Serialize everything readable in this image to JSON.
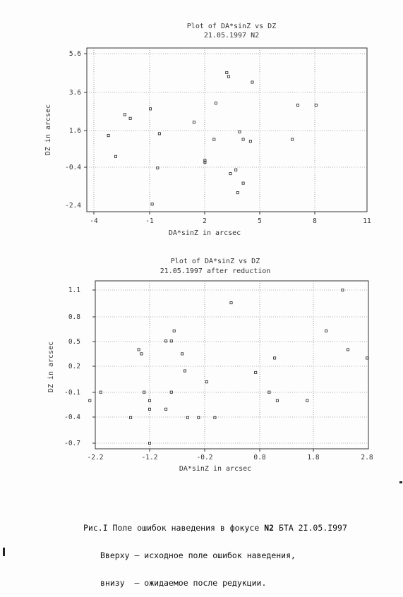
{
  "charts": [
    {
      "title": "Plot of DA*sinZ vs DZ",
      "subtitle": "21.05.1997 N2",
      "xlabel": "DA*sinZ in arcsec",
      "ylabel": "DZ in arcsec",
      "x_ticks": [
        "-4",
        "-1",
        "2",
        "5",
        "8",
        "11"
      ],
      "y_ticks": [
        "5.6",
        "3.6",
        "1.6",
        "-0.4",
        "-2.4"
      ]
    },
    {
      "title": "Plot of DA*sinZ vs DZ",
      "subtitle": "21.05.1997 after reduction",
      "xlabel": "DA*sinZ in arcsec",
      "ylabel": "DZ in arcsec",
      "x_ticks": [
        "-2.2",
        "-1.2",
        "-0.2",
        "0.8",
        "1.8",
        "2.8"
      ],
      "y_ticks": [
        "1.1",
        "0.8",
        "0.5",
        "0.2",
        "-0.1",
        "-0.4",
        "-0.7"
      ]
    }
  ],
  "chart_data": [
    {
      "type": "scatter",
      "title": "Plot of DA*sinZ vs DZ",
      "subtitle": "21.05.1997 N2",
      "xlabel": "DA*sinZ in arcsec",
      "ylabel": "DZ in arcsec",
      "xlim": [
        -4,
        11
      ],
      "ylim": [
        -2.4,
        5.6
      ],
      "x_ticks": [
        -4,
        -1,
        2,
        5,
        8,
        11
      ],
      "y_ticks": [
        5.6,
        3.6,
        1.6,
        -0.4,
        -2.4
      ],
      "grid": true,
      "points": [
        {
          "x": 3.3,
          "y": 4.6
        },
        {
          "x": 3.4,
          "y": 4.4
        },
        {
          "x": 4.7,
          "y": 4.1
        },
        {
          "x": 2.7,
          "y": 3.0
        },
        {
          "x": 7.2,
          "y": 2.9
        },
        {
          "x": 8.2,
          "y": 2.9
        },
        {
          "x": -0.9,
          "y": 2.7
        },
        {
          "x": -2.3,
          "y": 2.4
        },
        {
          "x": -2.0,
          "y": 2.2
        },
        {
          "x": 1.5,
          "y": 2.0
        },
        {
          "x": 4.0,
          "y": 1.5
        },
        {
          "x": -3.2,
          "y": 1.3
        },
        {
          "x": -0.4,
          "y": 1.4
        },
        {
          "x": 4.2,
          "y": 1.1
        },
        {
          "x": 4.6,
          "y": 1.0
        },
        {
          "x": 2.6,
          "y": 1.1
        },
        {
          "x": 6.9,
          "y": 1.1
        },
        {
          "x": 2.1,
          "y": 0.0
        },
        {
          "x": 2.1,
          "y": -0.1
        },
        {
          "x": -2.8,
          "y": 0.2
        },
        {
          "x": -0.5,
          "y": -0.4
        },
        {
          "x": 3.8,
          "y": -0.5
        },
        {
          "x": 3.5,
          "y": -0.7
        },
        {
          "x": 4.2,
          "y": -1.2
        },
        {
          "x": 3.9,
          "y": -1.7
        },
        {
          "x": -0.8,
          "y": -2.3
        }
      ]
    },
    {
      "type": "scatter",
      "title": "Plot of DA*sinZ vs DZ",
      "subtitle": "21.05.1997 after reduction",
      "xlabel": "DA*sinZ in arcsec",
      "ylabel": "DZ in arcsec",
      "xlim": [
        -2.2,
        2.8
      ],
      "ylim": [
        -0.7,
        1.1
      ],
      "x_ticks": [
        -2.2,
        -1.2,
        -0.2,
        0.8,
        1.8,
        2.8
      ],
      "y_ticks": [
        1.1,
        0.8,
        0.5,
        0.2,
        -0.1,
        -0.4,
        -0.7
      ],
      "grid": true,
      "points": [
        {
          "x": 2.35,
          "y": 1.1
        },
        {
          "x": 0.3,
          "y": 0.95
        },
        {
          "x": 2.05,
          "y": 0.62
        },
        {
          "x": -0.75,
          "y": 0.62
        },
        {
          "x": -0.9,
          "y": 0.5
        },
        {
          "x": -0.8,
          "y": 0.5
        },
        {
          "x": 2.45,
          "y": 0.4
        },
        {
          "x": -1.4,
          "y": 0.4
        },
        {
          "x": -1.35,
          "y": 0.35
        },
        {
          "x": -0.6,
          "y": 0.35
        },
        {
          "x": 1.1,
          "y": 0.3
        },
        {
          "x": 2.8,
          "y": 0.3
        },
        {
          "x": -0.55,
          "y": 0.15
        },
        {
          "x": 0.75,
          "y": 0.13
        },
        {
          "x": -0.15,
          "y": 0.02
        },
        {
          "x": -2.1,
          "y": -0.1
        },
        {
          "x": -1.3,
          "y": -0.1
        },
        {
          "x": -0.8,
          "y": -0.1
        },
        {
          "x": 1.0,
          "y": -0.1
        },
        {
          "x": -2.3,
          "y": -0.2
        },
        {
          "x": -1.2,
          "y": -0.2
        },
        {
          "x": 1.15,
          "y": -0.2
        },
        {
          "x": 1.7,
          "y": -0.2
        },
        {
          "x": -1.2,
          "y": -0.3
        },
        {
          "x": -0.9,
          "y": -0.3
        },
        {
          "x": -1.55,
          "y": -0.4
        },
        {
          "x": -0.5,
          "y": -0.4
        },
        {
          "x": -0.3,
          "y": -0.4
        },
        {
          "x": 0.0,
          "y": -0.4
        },
        {
          "x": -1.2,
          "y": -0.7
        }
      ]
    }
  ],
  "caption": {
    "line1_prefix": "Рис.I Поле ошибок наведения в фокусе ",
    "line1_bold": "N2",
    "line1_suffix": " БТА 2I.05.I997",
    "line2": "Вверху – исходное поле ошибок наведения,",
    "line3": "внизу  – ожидаемое после редукции."
  }
}
